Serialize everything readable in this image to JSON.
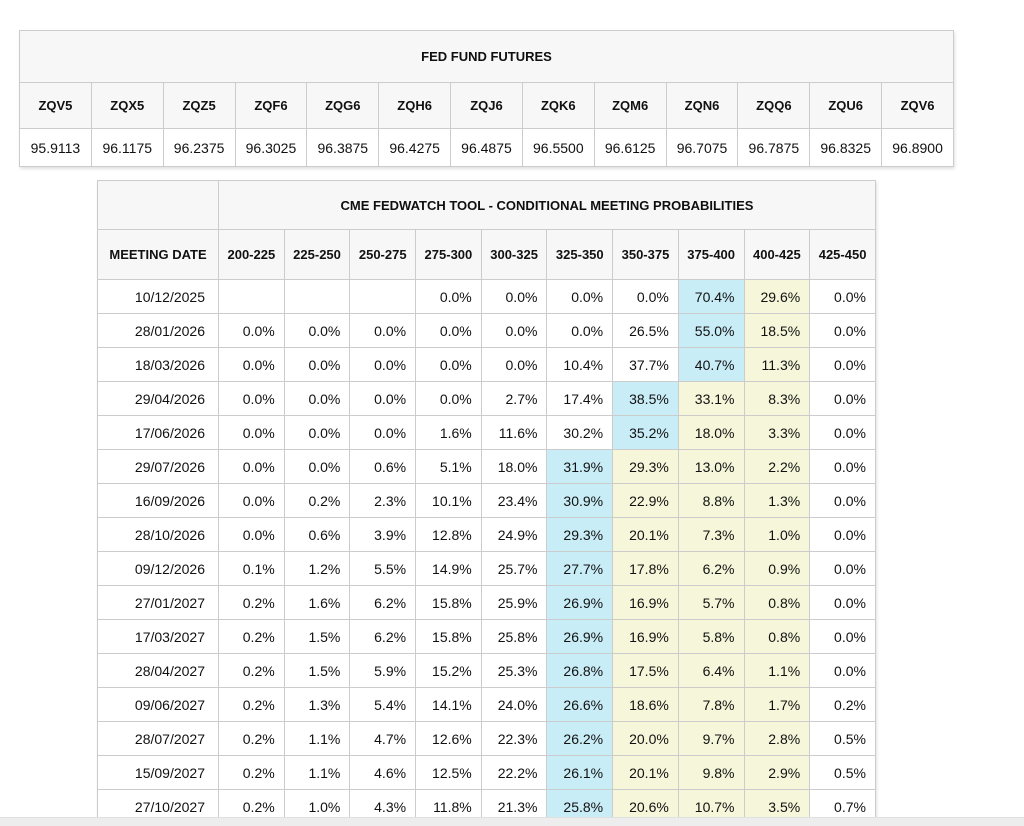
{
  "futures_table": {
    "title": "FED FUND FUTURES",
    "columns": [
      "ZQV5",
      "ZQX5",
      "ZQZ5",
      "ZQF6",
      "ZQG6",
      "ZQH6",
      "ZQJ6",
      "ZQK6",
      "ZQM6",
      "ZQN6",
      "ZQQ6",
      "ZQU6",
      "ZQV6"
    ],
    "values": [
      "95.9113",
      "96.1175",
      "96.2375",
      "96.3025",
      "96.3875",
      "96.4275",
      "96.4875",
      "96.5500",
      "96.6125",
      "96.7075",
      "96.7875",
      "96.8325",
      "96.8900"
    ]
  },
  "fedwatch_table": {
    "title": "CME FEDWATCH TOOL - CONDITIONAL MEETING PROBABILITIES",
    "date_header": "MEETING DATE",
    "rate_columns": [
      "200-225",
      "225-250",
      "250-275",
      "275-300",
      "300-325",
      "325-350",
      "350-375",
      "375-400",
      "400-425",
      "425-450"
    ],
    "highlight_colors": {
      "max_cell": "#c9edf7",
      "trailing_cells": "#f6f6da"
    },
    "rows": [
      {
        "date": "10/12/2025",
        "values": [
          "",
          "",
          "",
          "0.0%",
          "0.0%",
          "0.0%",
          "0.0%",
          "70.4%",
          "29.6%",
          "0.0%"
        ],
        "blue": 7,
        "yellow": [
          8
        ]
      },
      {
        "date": "28/01/2026",
        "values": [
          "0.0%",
          "0.0%",
          "0.0%",
          "0.0%",
          "0.0%",
          "0.0%",
          "26.5%",
          "55.0%",
          "18.5%",
          "0.0%"
        ],
        "blue": 7,
        "yellow": [
          8
        ]
      },
      {
        "date": "18/03/2026",
        "values": [
          "0.0%",
          "0.0%",
          "0.0%",
          "0.0%",
          "0.0%",
          "10.4%",
          "37.7%",
          "40.7%",
          "11.3%",
          "0.0%"
        ],
        "blue": 7,
        "yellow": [
          8
        ]
      },
      {
        "date": "29/04/2026",
        "values": [
          "0.0%",
          "0.0%",
          "0.0%",
          "0.0%",
          "2.7%",
          "17.4%",
          "38.5%",
          "33.1%",
          "8.3%",
          "0.0%"
        ],
        "blue": 6,
        "yellow": [
          7,
          8
        ]
      },
      {
        "date": "17/06/2026",
        "values": [
          "0.0%",
          "0.0%",
          "0.0%",
          "1.6%",
          "11.6%",
          "30.2%",
          "35.2%",
          "18.0%",
          "3.3%",
          "0.0%"
        ],
        "blue": 6,
        "yellow": [
          7,
          8
        ]
      },
      {
        "date": "29/07/2026",
        "values": [
          "0.0%",
          "0.0%",
          "0.6%",
          "5.1%",
          "18.0%",
          "31.9%",
          "29.3%",
          "13.0%",
          "2.2%",
          "0.0%"
        ],
        "blue": 5,
        "yellow": [
          6,
          7,
          8
        ]
      },
      {
        "date": "16/09/2026",
        "values": [
          "0.0%",
          "0.2%",
          "2.3%",
          "10.1%",
          "23.4%",
          "30.9%",
          "22.9%",
          "8.8%",
          "1.3%",
          "0.0%"
        ],
        "blue": 5,
        "yellow": [
          6,
          7,
          8
        ]
      },
      {
        "date": "28/10/2026",
        "values": [
          "0.0%",
          "0.6%",
          "3.9%",
          "12.8%",
          "24.9%",
          "29.3%",
          "20.1%",
          "7.3%",
          "1.0%",
          "0.0%"
        ],
        "blue": 5,
        "yellow": [
          6,
          7,
          8
        ]
      },
      {
        "date": "09/12/2026",
        "values": [
          "0.1%",
          "1.2%",
          "5.5%",
          "14.9%",
          "25.7%",
          "27.7%",
          "17.8%",
          "6.2%",
          "0.9%",
          "0.0%"
        ],
        "blue": 5,
        "yellow": [
          6,
          7,
          8
        ]
      },
      {
        "date": "27/01/2027",
        "values": [
          "0.2%",
          "1.6%",
          "6.2%",
          "15.8%",
          "25.9%",
          "26.9%",
          "16.9%",
          "5.7%",
          "0.8%",
          "0.0%"
        ],
        "blue": 5,
        "yellow": [
          6,
          7,
          8
        ]
      },
      {
        "date": "17/03/2027",
        "values": [
          "0.2%",
          "1.5%",
          "6.2%",
          "15.8%",
          "25.8%",
          "26.9%",
          "16.9%",
          "5.8%",
          "0.8%",
          "0.0%"
        ],
        "blue": 5,
        "yellow": [
          6,
          7,
          8
        ]
      },
      {
        "date": "28/04/2027",
        "values": [
          "0.2%",
          "1.5%",
          "5.9%",
          "15.2%",
          "25.3%",
          "26.8%",
          "17.5%",
          "6.4%",
          "1.1%",
          "0.0%"
        ],
        "blue": 5,
        "yellow": [
          6,
          7,
          8
        ]
      },
      {
        "date": "09/06/2027",
        "values": [
          "0.2%",
          "1.3%",
          "5.4%",
          "14.1%",
          "24.0%",
          "26.6%",
          "18.6%",
          "7.8%",
          "1.7%",
          "0.2%"
        ],
        "blue": 5,
        "yellow": [
          6,
          7,
          8
        ]
      },
      {
        "date": "28/07/2027",
        "values": [
          "0.2%",
          "1.1%",
          "4.7%",
          "12.6%",
          "22.3%",
          "26.2%",
          "20.0%",
          "9.7%",
          "2.8%",
          "0.5%"
        ],
        "blue": 5,
        "yellow": [
          6,
          7,
          8
        ]
      },
      {
        "date": "15/09/2027",
        "values": [
          "0.2%",
          "1.1%",
          "4.6%",
          "12.5%",
          "22.2%",
          "26.1%",
          "20.1%",
          "9.8%",
          "2.9%",
          "0.5%"
        ],
        "blue": 5,
        "yellow": [
          6,
          7,
          8
        ]
      },
      {
        "date": "27/10/2027",
        "values": [
          "0.2%",
          "1.0%",
          "4.3%",
          "11.8%",
          "21.3%",
          "25.8%",
          "20.6%",
          "10.7%",
          "3.5%",
          "0.7%"
        ],
        "blue": 5,
        "yellow": [
          6,
          7,
          8
        ]
      }
    ]
  }
}
